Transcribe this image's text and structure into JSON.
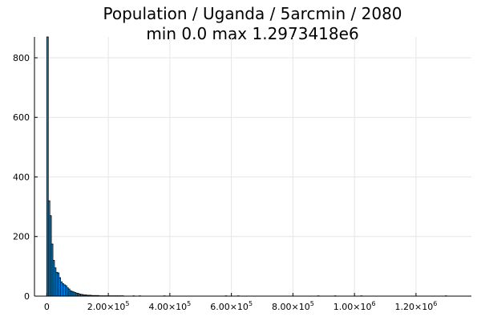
{
  "chart_data": {
    "type": "bar",
    "title_line1": "Population / Uganda / 5arcmin / 2080",
    "title_line2": "min 0.0  max 1.2973418e6",
    "xlim": [
      -40000,
      1380000
    ],
    "ylim": [
      0,
      870
    ],
    "grid": true,
    "legend": "none",
    "bar_color": "#009AFA",
    "x_ticks": [
      {
        "value": 0,
        "label": "0"
      },
      {
        "value": 200000,
        "mantissa": "2.00×10",
        "exp": "5"
      },
      {
        "value": 400000,
        "mantissa": "4.00×10",
        "exp": "5"
      },
      {
        "value": 600000,
        "mantissa": "6.00×10",
        "exp": "5"
      },
      {
        "value": 800000,
        "mantissa": "8.00×10",
        "exp": "5"
      },
      {
        "value": 1000000,
        "mantissa": "1.00×10",
        "exp": "6"
      },
      {
        "value": 1200000,
        "mantissa": "1.20×10",
        "exp": "6"
      }
    ],
    "y_ticks": [
      0,
      200,
      400,
      600,
      800
    ],
    "bin_width": 5000,
    "bins_start": 0,
    "values": [
      870,
      320,
      270,
      175,
      120,
      95,
      80,
      78,
      62,
      48,
      42,
      38,
      35,
      28,
      24,
      18,
      16,
      14,
      12,
      10,
      9,
      7,
      6,
      5,
      4,
      4,
      3,
      3,
      3,
      2,
      2,
      2,
      2,
      2,
      1,
      1,
      1,
      1,
      1,
      1,
      1,
      1,
      1,
      1,
      1,
      1,
      1,
      1,
      1,
      1
    ],
    "outliers": [
      {
        "x": 280000,
        "y": 1
      },
      {
        "x": 300000,
        "y": 1
      },
      {
        "x": 380000,
        "y": 1
      },
      {
        "x": 580000,
        "y": 1
      },
      {
        "x": 620000,
        "y": 1
      },
      {
        "x": 880000,
        "y": 1
      },
      {
        "x": 935000,
        "y": 1
      },
      {
        "x": 1020000,
        "y": 1
      },
      {
        "x": 1295000,
        "y": 1
      }
    ]
  }
}
